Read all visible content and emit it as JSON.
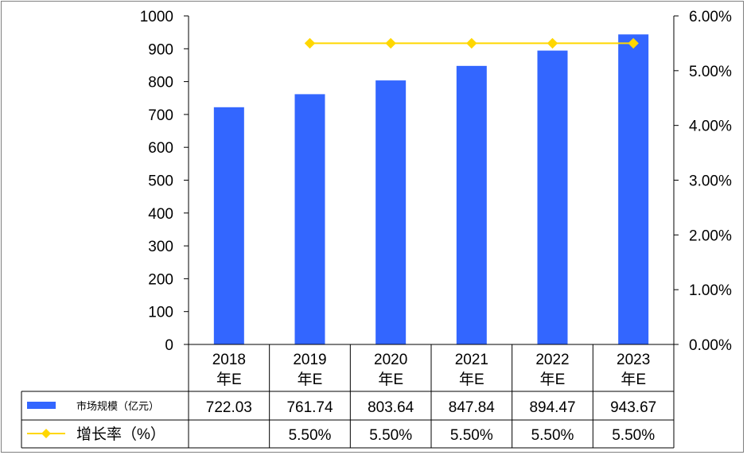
{
  "chart_data": {
    "type": "bar",
    "categories": [
      [
        "2018",
        "年E"
      ],
      [
        "2019",
        "年E"
      ],
      [
        "2020",
        "年E"
      ],
      [
        "2021",
        "年E"
      ],
      [
        "2022",
        "年E"
      ],
      [
        "2023",
        "年E"
      ]
    ],
    "series": [
      {
        "name": "市场规模（亿元）",
        "type": "bar",
        "axis": "left",
        "color": "#3366FF",
        "values": [
          722.03,
          761.74,
          803.64,
          847.84,
          894.47,
          943.67
        ],
        "labels": [
          "722.03",
          "761.74",
          "803.64",
          "847.84",
          "894.47",
          "943.67"
        ]
      },
      {
        "name": "增长率（%）",
        "type": "line",
        "axis": "right",
        "color": "#FFD700",
        "marker": "diamond",
        "values": [
          null,
          5.5,
          5.5,
          5.5,
          5.5,
          5.5
        ],
        "labels": [
          "",
          "5.50%",
          "5.50%",
          "5.50%",
          "5.50%",
          "5.50%"
        ]
      }
    ],
    "y_left": {
      "ylim": [
        0,
        1000
      ],
      "ticks": [
        "0",
        "100",
        "200",
        "300",
        "400",
        "500",
        "600",
        "700",
        "800",
        "900",
        "1000"
      ]
    },
    "y_right": {
      "ylim": [
        0,
        6
      ],
      "ticks": [
        "0.00%",
        "1.00%",
        "2.00%",
        "3.00%",
        "4.00%",
        "5.00%",
        "6.00%"
      ]
    },
    "data_table": true,
    "grid": false
  }
}
